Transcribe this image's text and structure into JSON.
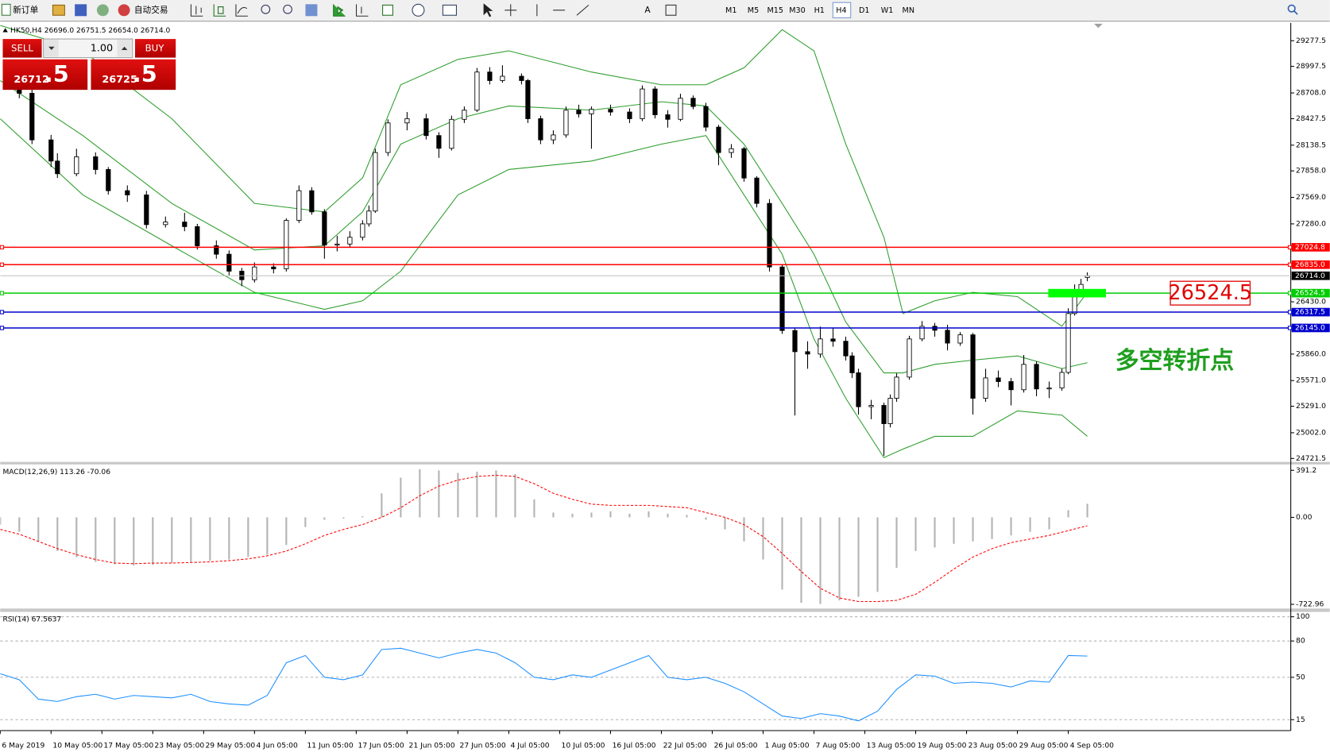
{
  "toolbar": {
    "new_order": "新订单",
    "auto_trading": "自动交易",
    "timeframes": [
      "M1",
      "M5",
      "M15",
      "M30",
      "H1",
      "H4",
      "D1",
      "W1",
      "MN"
    ],
    "active_timeframe": 5
  },
  "trade_panel": {
    "sell": "SELL",
    "lots": "1.00",
    "buy": "BUY",
    "bid_main": "26712",
    "bid_frac": ".5",
    "ask_main": "26725",
    "ask_frac": ".5"
  },
  "chart_data": [
    {
      "type": "candlestick",
      "title": "HK50,H4  26696.0 26751.5 26654.0 26714.0",
      "xlim": [
        0,
        203
      ],
      "ylim": [
        24684,
        29472
      ],
      "yticks": [
        29277.5,
        28997.5,
        {
          "value": 28708,
          "label": "28708.0"
        },
        28427.5,
        28138.5,
        {
          "value": 27858,
          "label": "27858.0"
        },
        {
          "value": 27569,
          "label": "27569.0"
        },
        {
          "value": 27280,
          "label": "27280.0"
        },
        {
          "value": 26430,
          "label": "26430.0"
        },
        {
          "value": 25860,
          "label": "25860.0"
        },
        {
          "value": 25571,
          "label": "25571.0"
        },
        {
          "value": 25291,
          "label": "25291.0"
        },
        {
          "value": 25002,
          "label": "25002.0"
        },
        24721.5
      ],
      "x": [
        3,
        5,
        8,
        9,
        12,
        15,
        17,
        20,
        23,
        26,
        29,
        31,
        34,
        36,
        38,
        40,
        43,
        45,
        47,
        49,
        51,
        53,
        55,
        57,
        58,
        59,
        61,
        64,
        67,
        69,
        71,
        73,
        75,
        77,
        79,
        82,
        83,
        85,
        87,
        89,
        91,
        93,
        96,
        99,
        101,
        103,
        105,
        107,
        109,
        111,
        113,
        115,
        117,
        119,
        121,
        123,
        125,
        127,
        129,
        131,
        133,
        134,
        135,
        137,
        139,
        140,
        141,
        143,
        145,
        147,
        149,
        151,
        153,
        155,
        157,
        159,
        161,
        163,
        165,
        167,
        168,
        169,
        170,
        171
      ],
      "open": [
        28800,
        28704,
        28196,
        27965,
        27827,
        28012,
        27873,
        27642,
        27596,
        27272,
        27300,
        27250,
        27041,
        26949,
        26764,
        26671,
        26810,
        26790,
        27318,
        27642,
        27411,
        27050,
        27060,
        27134,
        27280,
        27420,
        28058,
        28381,
        28427,
        28243,
        28104,
        28420,
        28520,
        28936,
        28843,
        28890,
        28843,
        28427,
        28196,
        28250,
        28520,
        28480,
        28530,
        28500,
        28427,
        28751,
        28470,
        28420,
        28650,
        28560,
        28335,
        28058,
        28100,
        27780,
        27503,
        26810,
        26117,
        25886,
        25860,
        26025,
        26000,
        25840,
        25656,
        25286,
        25300,
        25101,
        25378,
        25609,
        26025,
        26163,
        26120,
        25980,
        26070,
        25378,
        25600,
        25560,
        25471,
        25748,
        25480,
        25490,
        25660,
        26302,
        26533,
        26696
      ],
      "high": [
        28850,
        28760,
        28250,
        28050,
        28100,
        28060,
        27900,
        27700,
        27640,
        27360,
        27400,
        27280,
        27100,
        26990,
        26800,
        26860,
        26850,
        27340,
        27700,
        27680,
        27440,
        27150,
        27200,
        27320,
        27480,
        28100,
        28420,
        28500,
        28480,
        28280,
        28460,
        28560,
        28980,
        28990,
        29010,
        28920,
        28860,
        28460,
        28300,
        28560,
        28580,
        28560,
        28580,
        28540,
        28790,
        28780,
        28520,
        28700,
        28680,
        28600,
        28360,
        28150,
        28120,
        27800,
        27550,
        26830,
        26150,
        26000,
        26160,
        26150,
        26050,
        25880,
        25700,
        25360,
        25330,
        25420,
        25650,
        26060,
        26220,
        26200,
        26180,
        26100,
        26090,
        25700,
        25680,
        25600,
        25850,
        25780,
        25560,
        25700,
        26360,
        26620,
        26680,
        26751.5
      ],
      "low": [
        28650,
        28150,
        27900,
        27780,
        27800,
        27820,
        27600,
        27520,
        27230,
        27240,
        27200,
        27000,
        26900,
        26720,
        26600,
        26640,
        26740,
        26760,
        27290,
        27380,
        26900,
        26980,
        27020,
        27100,
        27250,
        27400,
        28020,
        28300,
        28200,
        28000,
        28080,
        28380,
        28500,
        28800,
        28820,
        28800,
        28380,
        28150,
        28150,
        28220,
        28440,
        28100,
        28460,
        28380,
        28400,
        28430,
        28330,
        28400,
        28530,
        28290,
        27920,
        28000,
        27740,
        27460,
        26760,
        26080,
        25190,
        25700,
        25820,
        25940,
        25790,
        25600,
        25200,
        25150,
        24750,
        25060,
        25340,
        25580,
        26000,
        26050,
        25900,
        25950,
        25200,
        25340,
        25500,
        25300,
        25440,
        25400,
        25380,
        25460,
        25640,
        26280,
        26500,
        26654
      ],
      "close": [
        28704,
        28196,
        27965,
        27827,
        28012,
        27873,
        27642,
        27596,
        27272,
        27300,
        27250,
        27041,
        26949,
        26764,
        26671,
        26810,
        26790,
        27318,
        27642,
        27411,
        27050,
        27060,
        27134,
        27280,
        27420,
        28058,
        28381,
        28427,
        28243,
        28104,
        28420,
        28520,
        28936,
        28843,
        28890,
        28843,
        28427,
        28196,
        28250,
        28520,
        28480,
        28530,
        28500,
        28427,
        28751,
        28470,
        28420,
        28650,
        28560,
        28335,
        28058,
        28100,
        27780,
        27503,
        26810,
        26117,
        25886,
        25860,
        26025,
        26000,
        25840,
        25656,
        25286,
        25300,
        25101,
        25378,
        25609,
        26025,
        26163,
        26120,
        25980,
        26070,
        25378,
        25600,
        25560,
        25471,
        25748,
        25480,
        25490,
        25660,
        26302,
        26533,
        26620,
        26714
      ],
      "bands": {
        "color": "#2e9e2e",
        "x": [
          0,
          13,
          27,
          40,
          51,
          57,
          63,
          72,
          80,
          93,
          104,
          111,
          117,
          123,
          128,
          133,
          139,
          142,
          147,
          153,
          160,
          167,
          171
        ],
        "upper": [
          29444,
          29167,
          28427,
          27503,
          27411,
          27781,
          28797,
          29074,
          29167,
          28936,
          28797,
          28797,
          28982,
          29398,
          29167,
          28150,
          27134,
          26302,
          26441,
          26533,
          26487,
          26164,
          26533
        ],
        "middle": [
          28843,
          28243,
          27503,
          26995,
          27041,
          27411,
          28150,
          28427,
          28566,
          28520,
          28612,
          28566,
          28150,
          27503,
          26949,
          26210,
          25655,
          25655,
          25748,
          25794,
          25840,
          25702,
          25766
        ],
        "lower": [
          28427,
          27596,
          27041,
          26533,
          26348,
          26441,
          26764,
          27596,
          27873,
          27965,
          28150,
          28243,
          27596,
          26949,
          26025,
          25378,
          24731,
          24824,
          24963,
          24963,
          25240,
          25194,
          24963
        ]
      },
      "levels": [
        {
          "value": 27024.8,
          "color": "#ff0000"
        },
        {
          "value": 26835,
          "label": "26835.0",
          "color": "#ff0000"
        },
        {
          "value": 26524.5,
          "color": "#00cc00"
        },
        {
          "value": 26317.5,
          "color": "#0000cc"
        },
        {
          "value": 26145,
          "label": "26145.0",
          "color": "#0000cc"
        }
      ],
      "current": {
        "value": 26714,
        "label": "26714.0"
      },
      "annotations": [
        {
          "text": "多空转折点",
          "color": "#1e9e1e"
        }
      ]
    },
    {
      "type": "macd",
      "title": "MACD(12,26,9) 113.26 -70.06",
      "xlim": [
        0,
        203
      ],
      "ylim": [
        -758,
        440
      ],
      "yticks": [
        391.2,
        {
          "value": 0,
          "label": "0.00"
        },
        -722.96
      ],
      "x": [
        0,
        3,
        6,
        9,
        12,
        15,
        18,
        21,
        24,
        27,
        30,
        33,
        36,
        39,
        42,
        45,
        48,
        51,
        54,
        57,
        60,
        63,
        66,
        69,
        72,
        75,
        78,
        81,
        84,
        87,
        90,
        93,
        96,
        99,
        102,
        105,
        108,
        111,
        114,
        117,
        120,
        123,
        126,
        129,
        132,
        135,
        138,
        141,
        144,
        147,
        150,
        153,
        156,
        159,
        162,
        165,
        168,
        171
      ],
      "histogram": {
        "color": "#b4b4b4",
        "values": [
          -60,
          -120,
          -200,
          -280,
          -330,
          -370,
          -390,
          -400,
          -395,
          -380,
          -370,
          -360,
          -350,
          -330,
          -310,
          -230,
          -80,
          -20,
          -10,
          10,
          200,
          330,
          400,
          390,
          370,
          380,
          390,
          360,
          150,
          40,
          30,
          40,
          50,
          30,
          50,
          30,
          20,
          -20,
          -100,
          -200,
          -350,
          -600,
          -710,
          -720,
          -690,
          -660,
          -620,
          -420,
          -280,
          -250,
          -220,
          -200,
          -180,
          -150,
          -120,
          -100,
          60,
          113.26
        ]
      },
      "signal": {
        "color": "#ff0000",
        "values": [
          -100,
          -140,
          -200,
          -260,
          -310,
          -350,
          -380,
          -385,
          -380,
          -380,
          -375,
          -370,
          -360,
          -345,
          -320,
          -280,
          -220,
          -150,
          -100,
          -60,
          0,
          80,
          180,
          260,
          310,
          340,
          350,
          340,
          280,
          200,
          150,
          110,
          100,
          100,
          100,
          90,
          80,
          40,
          0,
          -60,
          -160,
          -300,
          -450,
          -590,
          -670,
          -700,
          -700,
          -690,
          -640,
          -540,
          -430,
          -330,
          -260,
          -210,
          -180,
          -150,
          -110,
          -70.06
        ]
      }
    },
    {
      "type": "line",
      "title": "RSI(14) 67.5637",
      "xlim": [
        0,
        203
      ],
      "ylim": [
        6,
        104
      ],
      "yticks": [
        100,
        80,
        50,
        15
      ],
      "grid": true,
      "x": [
        0,
        3,
        6,
        9,
        12,
        15,
        18,
        21,
        24,
        27,
        30,
        33,
        36,
        39,
        42,
        45,
        48,
        51,
        54,
        57,
        60,
        63,
        66,
        69,
        72,
        75,
        78,
        81,
        84,
        87,
        90,
        93,
        96,
        99,
        102,
        105,
        108,
        111,
        114,
        117,
        120,
        123,
        126,
        129,
        132,
        135,
        138,
        141,
        144,
        147,
        150,
        153,
        156,
        159,
        162,
        165,
        168,
        171
      ],
      "series": [
        {
          "color": "#1e90ff",
          "values": [
            53,
            48,
            32,
            30,
            34,
            36,
            32,
            35,
            34,
            33,
            36,
            30,
            28,
            27,
            35,
            62,
            68,
            50,
            48,
            52,
            73,
            74,
            70,
            66,
            70,
            73,
            70,
            62,
            50,
            48,
            52,
            50,
            56,
            62,
            68,
            50,
            48,
            50,
            45,
            38,
            28,
            18,
            16,
            20,
            18,
            14,
            22,
            40,
            52,
            51,
            45,
            46,
            45,
            42,
            47,
            46,
            68,
            67.5637
          ]
        }
      ],
      "xticks": [
        {
          "value": 0,
          "label": "6 May 2019"
        },
        {
          "value": 8,
          "label": "10 May 05:00"
        },
        {
          "value": 16,
          "label": "17 May 05:00"
        },
        {
          "value": 24,
          "label": "23 May 05:00"
        },
        {
          "value": 32,
          "label": "29 May 05:00"
        },
        {
          "value": 40,
          "label": "4 Jun 05:00"
        },
        {
          "value": 48,
          "label": "11 Jun 05:00"
        },
        {
          "value": 56,
          "label": "17 Jun 05:00"
        },
        {
          "value": 64,
          "label": "21 Jun 05:00"
        },
        {
          "value": 72,
          "label": "27 Jun 05:00"
        },
        {
          "value": 80,
          "label": "4 Jul 05:00"
        },
        {
          "value": 88,
          "label": "10 Jul 05:00"
        },
        {
          "value": 96,
          "label": "16 Jul 05:00"
        },
        {
          "value": 104,
          "label": "22 Jul 05:00"
        },
        {
          "value": 112,
          "label": "26 Jul 05:00"
        },
        {
          "value": 120,
          "label": "1 Aug 05:00"
        },
        {
          "value": 128,
          "label": "7 Aug 05:00"
        },
        {
          "value": 136,
          "label": "13 Aug 05:00"
        },
        {
          "value": 144,
          "label": "19 Aug 05:00"
        },
        {
          "value": 152,
          "label": "23 Aug 05:00"
        },
        {
          "value": 160,
          "label": "29 Aug 05:00"
        },
        {
          "value": 168,
          "label": "4 Sep 05:00"
        }
      ]
    }
  ]
}
